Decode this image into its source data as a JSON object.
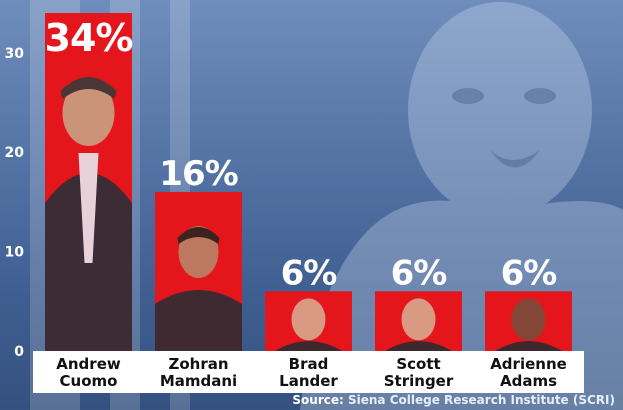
{
  "chart_data": {
    "type": "bar",
    "categories": [
      "Andrew Cuomo",
      "Zohran Mamdani",
      "Brad Lander",
      "Scott Stringer",
      "Adrienne Adams"
    ],
    "name_lines": [
      [
        "Andrew",
        "Cuomo"
      ],
      [
        "Zohran",
        "Mamdani"
      ],
      [
        "Brad",
        "Lander"
      ],
      [
        "Scott",
        "Stringer"
      ],
      [
        "Adrienne",
        "Adams"
      ]
    ],
    "values": [
      34,
      16,
      6,
      6,
      6
    ],
    "labels": [
      "34%",
      "16%",
      "6%",
      "6%",
      "6%"
    ],
    "yticks": [
      "0",
      "10",
      "20",
      "30"
    ],
    "ylim": [
      0,
      34
    ],
    "grid": false,
    "legend": "none",
    "title": "",
    "xlabel": "",
    "ylabel": ""
  },
  "source": {
    "label": "Source:",
    "text": " Siena College Research Institute (SCRI)"
  },
  "colors": {
    "bar": "#e5161b",
    "background": "#4a6a9e",
    "name_panel": "#ffffff",
    "name_text": "#111111"
  },
  "icons": {
    "candidate_photo": "person-portrait-icon",
    "background": "person-photo-background"
  }
}
